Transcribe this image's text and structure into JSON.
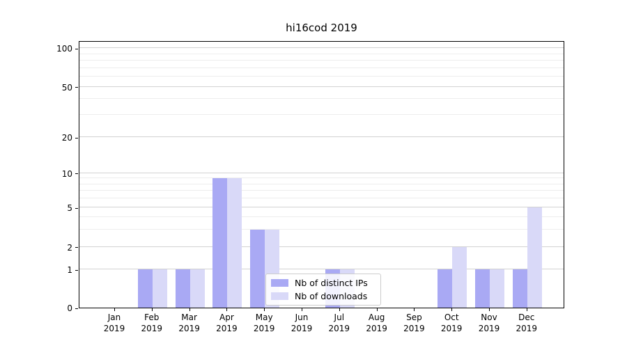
{
  "title": "hi16cod 2019",
  "colors": {
    "distinct_ips": "#a9a9f4",
    "downloads": "#d9d9f8",
    "grid_major": "#d2d2d2",
    "grid_minor": "#ededed",
    "axis": "#000000"
  },
  "legend": {
    "items": [
      {
        "label": "Nb of distinct IPs",
        "series_key": "distinct_ips"
      },
      {
        "label": "Nb of downloads",
        "series_key": "downloads"
      }
    ]
  },
  "chart_data": {
    "type": "bar",
    "title": "hi16cod 2019",
    "categories": [
      "Jan 2019",
      "Feb 2019",
      "Mar 2019",
      "Apr 2019",
      "May 2019",
      "Jun 2019",
      "Jul 2019",
      "Aug 2019",
      "Sep 2019",
      "Oct 2019",
      "Nov 2019",
      "Dec 2019"
    ],
    "x_tick_line1": [
      "Jan",
      "Feb",
      "Mar",
      "Apr",
      "May",
      "Jun",
      "Jul",
      "Aug",
      "Sep",
      "Oct",
      "Nov",
      "Dec"
    ],
    "x_tick_line2": "2019",
    "series": [
      {
        "name": "Nb of distinct IPs",
        "color_key": "distinct_ips",
        "values": [
          0,
          1,
          1,
          9,
          3,
          0,
          1,
          0,
          0,
          1,
          1,
          1
        ]
      },
      {
        "name": "Nb of downloads",
        "color_key": "downloads",
        "values": [
          0,
          1,
          1,
          9,
          3,
          0,
          1,
          0,
          0,
          2,
          1,
          5
        ]
      }
    ],
    "y_axis": {
      "scale": "symlog",
      "major_ticks": [
        0,
        1,
        2,
        5,
        10,
        20,
        50,
        100
      ],
      "minor_ticks": [
        3,
        4,
        6,
        7,
        8,
        9,
        30,
        40,
        60,
        70,
        80,
        90
      ],
      "ylim": [
        0,
        115
      ]
    },
    "xlabel": "",
    "ylabel": "",
    "grid": true,
    "legend_position": "inside lower center"
  }
}
